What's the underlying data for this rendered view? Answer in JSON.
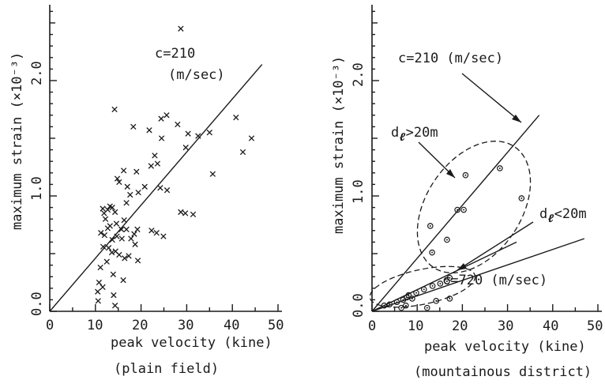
{
  "chart_data": [
    {
      "type": "scatter",
      "xlabel": "peak velocity (kine)",
      "ylabel": "maximum strain (×10⁻³)",
      "caption": "(plain field)",
      "xlim": [
        0,
        50
      ],
      "ylim": [
        0,
        2.6
      ],
      "xticks": [
        "0",
        "10",
        "20",
        "30",
        "40",
        "50"
      ],
      "yticks": [
        "0.0",
        "1.0",
        "2.0"
      ],
      "marker": "x",
      "points": [
        [
          28.7,
          2.45
        ],
        [
          14.2,
          1.75
        ],
        [
          25.6,
          1.7
        ],
        [
          24.4,
          1.67
        ],
        [
          28.0,
          1.62
        ],
        [
          18.3,
          1.6
        ],
        [
          21.8,
          1.57
        ],
        [
          30.3,
          1.54
        ],
        [
          32.5,
          1.52
        ],
        [
          35.0,
          1.55
        ],
        [
          40.8,
          1.68
        ],
        [
          44.2,
          1.5
        ],
        [
          24.5,
          1.5
        ],
        [
          29.8,
          1.42
        ],
        [
          23.0,
          1.35
        ],
        [
          42.3,
          1.38
        ],
        [
          23.6,
          1.28
        ],
        [
          22.2,
          1.26
        ],
        [
          16.2,
          1.22
        ],
        [
          19.0,
          1.21
        ],
        [
          35.7,
          1.19
        ],
        [
          14.8,
          1.15
        ],
        [
          15.2,
          1.12
        ],
        [
          17.0,
          1.08
        ],
        [
          20.8,
          1.08
        ],
        [
          24.2,
          1.07
        ],
        [
          25.7,
          1.05
        ],
        [
          19.4,
          1.03
        ],
        [
          17.6,
          1.01
        ],
        [
          16.8,
          0.94
        ],
        [
          13.2,
          0.91
        ],
        [
          13.7,
          0.9
        ],
        [
          11.6,
          0.89
        ],
        [
          12.7,
          0.88
        ],
        [
          14.3,
          0.86
        ],
        [
          11.9,
          0.85
        ],
        [
          28.7,
          0.86
        ],
        [
          29.7,
          0.85
        ],
        [
          31.4,
          0.84
        ],
        [
          12.2,
          0.8
        ],
        [
          16.3,
          0.79
        ],
        [
          14.6,
          0.76
        ],
        [
          13.2,
          0.74
        ],
        [
          12.7,
          0.72
        ],
        [
          15.7,
          0.71
        ],
        [
          16.8,
          0.71
        ],
        [
          19.2,
          0.71
        ],
        [
          22.3,
          0.7
        ],
        [
          11.2,
          0.68
        ],
        [
          12.0,
          0.66
        ],
        [
          14.7,
          0.65
        ],
        [
          18.5,
          0.67
        ],
        [
          23.4,
          0.68
        ],
        [
          24.9,
          0.65
        ],
        [
          13.7,
          0.62
        ],
        [
          15.8,
          0.63
        ],
        [
          17.8,
          0.63
        ],
        [
          18.7,
          0.58
        ],
        [
          11.7,
          0.56
        ],
        [
          12.9,
          0.55
        ],
        [
          13.6,
          0.51
        ],
        [
          14.4,
          0.52
        ],
        [
          15.2,
          0.49
        ],
        [
          17.3,
          0.48
        ],
        [
          16.4,
          0.46
        ],
        [
          12.5,
          0.43
        ],
        [
          19.3,
          0.44
        ],
        [
          11.1,
          0.38
        ],
        [
          13.9,
          0.32
        ],
        [
          10.8,
          0.25
        ],
        [
          16.1,
          0.27
        ],
        [
          11.6,
          0.21
        ],
        [
          10.5,
          0.17
        ],
        [
          14.0,
          0.14
        ],
        [
          10.6,
          0.09
        ],
        [
          14.3,
          0.05
        ]
      ],
      "fit_lines": [
        {
          "label": "c=210",
          "label2": "(m/sec)",
          "from": [
            0,
            0
          ],
          "to": [
            46.5,
            2.14
          ]
        }
      ]
    },
    {
      "type": "scatter",
      "xlabel": "peak velocity (kine)",
      "ylabel": "maximum strain (×10⁻³)",
      "caption": "(mountainous district)",
      "xlim": [
        0,
        50
      ],
      "ylim": [
        0,
        2.6
      ],
      "xticks": [
        "0",
        "10",
        "20",
        "30",
        "40",
        "50"
      ],
      "yticks": [
        "0.0",
        "1.0",
        "2.0"
      ],
      "marker": "o",
      "groups": [
        {
          "label": "dℓ > 20m",
          "points": [
            [
              28.3,
              1.24
            ],
            [
              20.7,
              1.18
            ],
            [
              33.1,
              0.98
            ],
            [
              18.9,
              0.88
            ],
            [
              20.3,
              0.88
            ],
            [
              12.9,
              0.74
            ],
            [
              16.6,
              0.62
            ],
            [
              13.3,
              0.51
            ]
          ]
        },
        {
          "label": "dℓ < 20m",
          "points": [
            [
              17.2,
              0.29
            ],
            [
              16.6,
              0.26
            ],
            [
              15.1,
              0.24
            ],
            [
              13.4,
              0.22
            ],
            [
              11.5,
              0.19
            ],
            [
              9.8,
              0.16
            ],
            [
              8.1,
              0.14
            ],
            [
              7.7,
              0.12
            ],
            [
              8.9,
              0.11
            ],
            [
              6.9,
              0.1
            ],
            [
              5.5,
              0.08
            ],
            [
              3.9,
              0.06
            ],
            [
              2.7,
              0.05
            ],
            [
              7.5,
              0.05
            ],
            [
              14.2,
              0.09
            ],
            [
              17.2,
              0.11
            ],
            [
              12.2,
              0.03
            ],
            [
              6.5,
              0.03
            ]
          ]
        }
      ],
      "fit_lines": [
        {
          "label": "c=210",
          "label2": "(m/sec)",
          "from": [
            0,
            0
          ],
          "to": [
            37.0,
            1.7
          ]
        },
        {
          "label": "c=720",
          "label2": "(m/sec)",
          "from": [
            0,
            0
          ],
          "to": [
            47.0,
            0.63
          ]
        },
        {
          "label": "",
          "label2": "",
          "from": [
            0,
            0
          ],
          "to": [
            32.0,
            0.6
          ]
        }
      ],
      "annotations": {
        "c210": "c=210  (m/sec)",
        "c720": "c=720  (m/sec)",
        "d_prefix": "d",
        "d_sub": "ℓ",
        "d_gt": ">20m",
        "d_lt": "<20m"
      }
    }
  ],
  "exponent": "-3"
}
